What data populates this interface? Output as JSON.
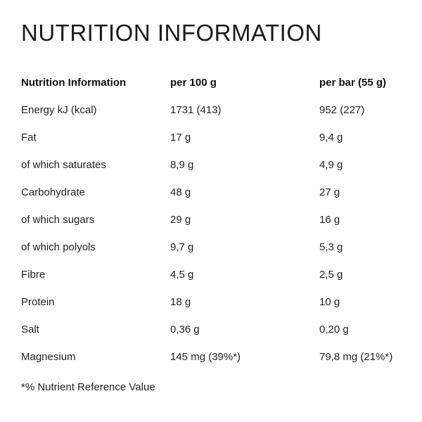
{
  "title": "NUTRITION INFORMATION",
  "table": {
    "headers": [
      "Nutrition Information",
      "per 100 g",
      "per bar (55 g)"
    ],
    "rows": [
      [
        "Energy kJ (kcal)",
        "1731 (413)",
        "952 (227)"
      ],
      [
        "Fat",
        "17 g",
        "9,4 g"
      ],
      [
        "of which saturates",
        "8,9 g",
        "4,9 g"
      ],
      [
        "Carbohydrate",
        "48 g",
        "27 g"
      ],
      [
        "of which sugars",
        "29 g",
        "16 g"
      ],
      [
        "of which polyols",
        "9,7 g",
        "5,3 g"
      ],
      [
        "Fibre",
        "4,5 g",
        "2,5 g"
      ],
      [
        "Protein",
        "18 g",
        "10 g"
      ],
      [
        "Salt",
        "0,36 g",
        "0,20 g"
      ],
      [
        "Magnesium",
        "145 mg (39%*)",
        "79,8 mg (21%*)"
      ]
    ]
  },
  "footnote": "*% Nutrient Reference Value"
}
